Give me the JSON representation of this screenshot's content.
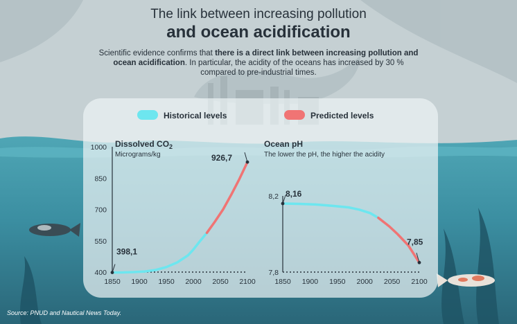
{
  "header": {
    "title_line1": "The link between increasing pollution",
    "title_line2": "and ocean acidification",
    "subtitle_pre": "Scientific evidence confirms that ",
    "subtitle_bold": "there is a direct link between increasing pollution and ocean acidification",
    "subtitle_post": ". In particular, the acidity of the oceans has increased by 30 % compared to pre-industrial times."
  },
  "legend": {
    "historical": "Historical levels",
    "predicted": "Predicted levels"
  },
  "colors": {
    "historical": "#6de6ef",
    "predicted": "#f07474",
    "text": "#27313a",
    "sea": "#3f94a6",
    "deep_sea": "#2c6d7f"
  },
  "source": "Source: PNUD and Nautical News Today.",
  "chart_data": [
    {
      "type": "line",
      "title": "Dissolved CO",
      "title_subscript": "2",
      "ylabel": "Micrograms/kg",
      "x_ticks": [
        1850,
        1900,
        1950,
        2000,
        2050,
        2100
      ],
      "y_ticks": [
        400,
        550,
        700,
        850,
        1000
      ],
      "xlim": [
        1850,
        2100
      ],
      "ylim": [
        400,
        1000
      ],
      "series": [
        {
          "role": "historical",
          "points": [
            [
              1850,
              398.1
            ],
            [
              1870,
              398.5
            ],
            [
              1890,
              400
            ],
            [
              1910,
              403
            ],
            [
              1930,
              410
            ],
            [
              1950,
              424
            ],
            [
              1970,
              446
            ],
            [
              1990,
              480
            ],
            [
              2000,
              508
            ],
            [
              2010,
              541
            ],
            [
              2025,
              588
            ]
          ]
        },
        {
          "role": "predicted",
          "points": [
            [
              2025,
              588
            ],
            [
              2040,
              642
            ],
            [
              2055,
              700
            ],
            [
              2070,
              770
            ],
            [
              2085,
              845
            ],
            [
              2100,
              926.7
            ]
          ]
        }
      ],
      "annotations": [
        {
          "label": "398,1",
          "x": 1850,
          "y": 398.1
        },
        {
          "label": "926,7",
          "x": 2100,
          "y": 926.7
        }
      ]
    },
    {
      "type": "line",
      "title": "Ocean pH",
      "ylabel": "The lower the pH, the higher the acidity",
      "x_ticks": [
        1850,
        1900,
        1950,
        2000,
        2050,
        2100
      ],
      "y_ticks": [
        7.8,
        8.2
      ],
      "xlim": [
        1850,
        2100
      ],
      "ylim": [
        7.8,
        8.2
      ],
      "series": [
        {
          "role": "historical",
          "points": [
            [
              1850,
              8.16
            ],
            [
              1880,
              8.158
            ],
            [
              1910,
              8.155
            ],
            [
              1940,
              8.148
            ],
            [
              1970,
              8.14
            ],
            [
              1990,
              8.128
            ],
            [
              2010,
              8.11
            ],
            [
              2025,
              8.085
            ]
          ]
        },
        {
          "role": "predicted",
          "points": [
            [
              2025,
              8.085
            ],
            [
              2045,
              8.04
            ],
            [
              2060,
              8.0
            ],
            [
              2080,
              7.94
            ],
            [
              2100,
              7.85
            ]
          ]
        }
      ],
      "annotations": [
        {
          "label": "8,16",
          "x": 1850,
          "y": 8.16
        },
        {
          "label": "7,85",
          "x": 2100,
          "y": 7.85
        }
      ]
    }
  ]
}
